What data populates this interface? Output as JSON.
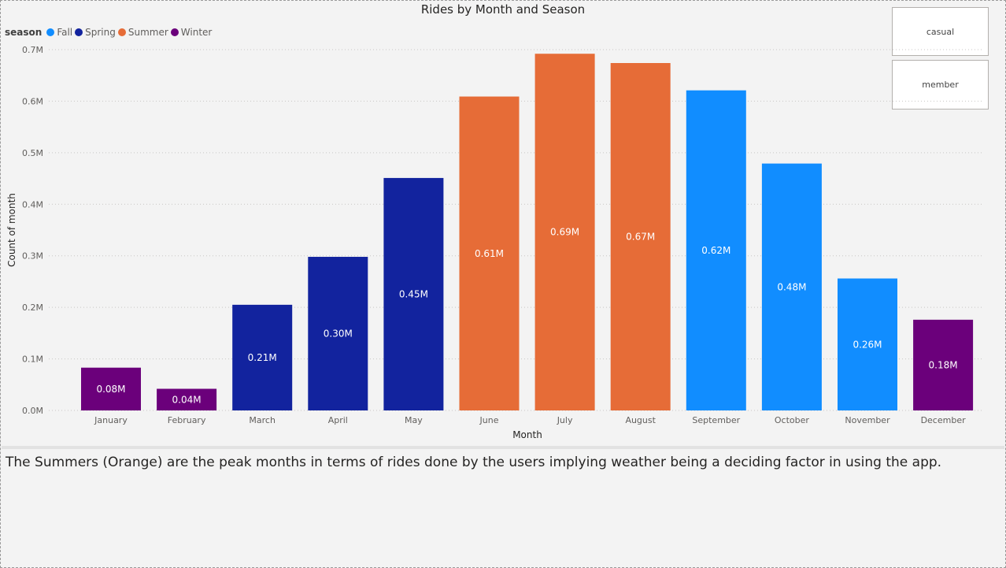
{
  "chart_data": {
    "type": "bar",
    "title": "Rides by Month and Season",
    "xlabel": "Month",
    "ylabel": "Count of month",
    "ylim": [
      0,
      0.7
    ],
    "yticks": [
      "0.0M",
      "0.1M",
      "0.2M",
      "0.3M",
      "0.4M",
      "0.5M",
      "0.6M",
      "0.7M"
    ],
    "grid": true,
    "legend_title": "season",
    "legend_placement": "top-left",
    "legend": [
      {
        "name": "Fall",
        "color": "#118dff"
      },
      {
        "name": "Spring",
        "color": "#12239e"
      },
      {
        "name": "Summer",
        "color": "#e66c37"
      },
      {
        "name": "Winter",
        "color": "#6b007b"
      }
    ],
    "categories": [
      "January",
      "February",
      "March",
      "April",
      "May",
      "June",
      "July",
      "August",
      "September",
      "October",
      "November",
      "December"
    ],
    "values": [
      0.083,
      0.042,
      0.205,
      0.298,
      0.451,
      0.609,
      0.692,
      0.674,
      0.621,
      0.479,
      0.256,
      0.176
    ],
    "value_unit": "M",
    "data_labels": [
      "0.08M",
      "0.04M",
      "0.21M",
      "0.30M",
      "0.45M",
      "0.61M",
      "0.69M",
      "0.67M",
      "0.62M",
      "0.48M",
      "0.26M",
      "0.18M"
    ],
    "season_of_category": [
      "Winter",
      "Winter",
      "Spring",
      "Spring",
      "Spring",
      "Summer",
      "Summer",
      "Summer",
      "Fall",
      "Fall",
      "Fall",
      "Winter"
    ]
  },
  "slicer": {
    "casual_label": "casual",
    "member_label": "member"
  },
  "caption": "The Summers (Orange) are the peak months in terms of rides done by the users implying weather being a deciding factor in using the app."
}
